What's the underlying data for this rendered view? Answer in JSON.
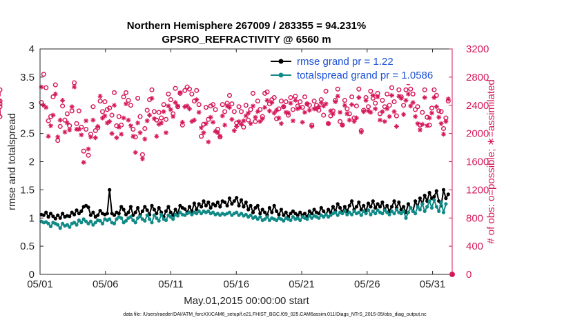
{
  "chart_data": {
    "type": "line",
    "title": "Northern Hemisphere 267009 / 283355 = 94.231%",
    "subtitle": "GPSRO_REFRACTIVITY @ 6560 m",
    "xlabel": "May.01,2015 00:00:00 start",
    "ylabel": "rmse and totalspread",
    "y2label": "# of obs: o=possible; ∗=assimilated",
    "footnote": "data file: /Users/raeder/DAI/ATM_forcXX/CAM6_setup/f.e21.FHIST_BGC.f09_025.CAM6assim.011/Diags_NTrS_2015-05/obs_diag_output.nc",
    "xlim": [
      0,
      31.5
    ],
    "ylim": [
      0,
      4
    ],
    "y2lim": [
      0,
      3200
    ],
    "x_ticks": [
      0,
      5,
      10,
      15,
      20,
      25,
      30
    ],
    "x_tick_labels": [
      "05/01",
      "05/06",
      "05/11",
      "05/16",
      "05/21",
      "05/26",
      "05/31"
    ],
    "y_ticks": [
      0,
      0.5,
      1,
      1.5,
      2,
      2.5,
      3,
      3.5,
      4
    ],
    "y_tick_labels": [
      "0",
      "0.5",
      "1",
      "1.5",
      "2",
      "2.5",
      "3",
      "3.5",
      "4"
    ],
    "y2_ticks": [
      0,
      400,
      800,
      1200,
      1600,
      2000,
      2400,
      2800,
      3200
    ],
    "y2_tick_labels": [
      "0",
      "400",
      "800",
      "1200",
      "1600",
      "2000",
      "2400",
      "2800",
      "3200"
    ],
    "series": [
      {
        "name": "rmse grand pr = 1.22",
        "axis": "left",
        "color": "#000000",
        "marker": "dot",
        "values": [
          1.06,
          1.05,
          1.1,
          1.02,
          1.08,
          1.03,
          0.99,
          1.05,
          1.0,
          1.08,
          1.02,
          1.04,
          1.03,
          1.1,
          1.06,
          1.14,
          1.08,
          1.12,
          1.2,
          1.22,
          1.19,
          1.05,
          1.1,
          1.02,
          1.05,
          1.13,
          1.08,
          1.06,
          1.08,
          1.5,
          1.08,
          1.05,
          1.1,
          1.08,
          1.2,
          1.15,
          1.06,
          1.1,
          1.2,
          1.05,
          1.1,
          1.18,
          1.05,
          1.12,
          1.2,
          1.14,
          1.06,
          1.22,
          1.15,
          1.08,
          1.18,
          1.1,
          1.02,
          1.12,
          1.2,
          1.1,
          1.05,
          1.15,
          1.08,
          1.22,
          1.18,
          1.16,
          1.1,
          1.2,
          1.12,
          1.26,
          1.15,
          1.25,
          1.2,
          1.3,
          1.22,
          1.28,
          1.18,
          1.25,
          1.22,
          1.28,
          1.2,
          1.3,
          1.28,
          1.22,
          1.35,
          1.25,
          1.3,
          1.36,
          1.22,
          1.32,
          1.2,
          1.28,
          1.15,
          1.22,
          1.1,
          1.18,
          1.22,
          1.08,
          1.15,
          1.1,
          1.05,
          1.18,
          1.1,
          1.22,
          1.12,
          1.06,
          1.15,
          1.05,
          1.1,
          1.02,
          1.08,
          1.12,
          1.08,
          1.05,
          1.1,
          1.05,
          1.08,
          1.02,
          1.12,
          1.08,
          1.15,
          1.1,
          1.08,
          1.18,
          1.12,
          1.06,
          1.15,
          1.1,
          1.2,
          1.12,
          1.25,
          1.18,
          1.1,
          1.2,
          1.12,
          1.22,
          1.3,
          1.15,
          1.2,
          1.28,
          1.15,
          1.22,
          1.12,
          1.26,
          1.2,
          1.3,
          1.18,
          1.25,
          1.2,
          1.28,
          1.15,
          1.22,
          1.12,
          1.2,
          1.3,
          1.18,
          1.28,
          1.15,
          1.2,
          1.1,
          1.25,
          1.18,
          1.12,
          1.3,
          1.2,
          1.35,
          1.25,
          1.4,
          1.3,
          1.45,
          1.35,
          1.38,
          1.48,
          1.3,
          1.22,
          1.5,
          1.35,
          1.42
        ]
      },
      {
        "name": "totalspread grand pr = 1.0586",
        "axis": "left",
        "color": "#108a86",
        "marker": "dot",
        "values": [
          0.94,
          0.92,
          0.93,
          0.9,
          0.85,
          0.92,
          0.9,
          0.88,
          0.82,
          0.9,
          0.86,
          0.88,
          0.84,
          0.9,
          0.92,
          0.88,
          0.96,
          0.92,
          0.98,
          0.94,
          0.9,
          0.94,
          0.88,
          0.92,
          0.96,
          0.95,
          0.9,
          0.98,
          0.96,
          0.98,
          0.92,
          0.9,
          0.98,
          1.02,
          1.0,
          0.92,
          0.95,
          1.0,
          1.02,
          0.96,
          0.92,
          1.0,
          1.03,
          0.98,
          0.95,
          1.05,
          0.98,
          0.92,
          1.05,
          1.0,
          0.95,
          1.06,
          0.98,
          0.96,
          1.05,
          1.02,
          0.98,
          1.06,
          1.04,
          1.1,
          1.06,
          1.05,
          1.08,
          1.1,
          1.06,
          1.1,
          1.08,
          1.12,
          1.08,
          1.12,
          1.1,
          1.12,
          1.08,
          1.1,
          1.06,
          1.08,
          1.05,
          1.08,
          1.06,
          1.08,
          1.1,
          1.05,
          1.08,
          1.1,
          1.05,
          1.08,
          1.04,
          1.06,
          1.02,
          1.05,
          1.0,
          1.02,
          0.98,
          1.02,
          0.96,
          0.98,
          1.02,
          0.96,
          1.0,
          0.98,
          0.96,
          1.0,
          0.98,
          0.95,
          1.0,
          0.98,
          0.96,
          1.02,
          0.98,
          1.0,
          0.96,
          1.02,
          1.0,
          0.98,
          1.04,
          1.0,
          1.04,
          1.02,
          1.0,
          1.05,
          1.02,
          1.06,
          1.02,
          1.05,
          1.08,
          1.1,
          1.05,
          1.1,
          1.08,
          1.12,
          1.06,
          1.1,
          1.06,
          1.12,
          1.08,
          1.1,
          1.05,
          1.12,
          1.08,
          1.14,
          1.06,
          1.12,
          1.08,
          1.14,
          1.1,
          1.08,
          1.14,
          1.1,
          1.06,
          1.12,
          1.08,
          1.15,
          1.1,
          1.08,
          1.12,
          1.0,
          1.1,
          1.18,
          1.12,
          1.08,
          1.2,
          1.15,
          1.25,
          1.12,
          1.2,
          1.3,
          1.18,
          1.32,
          1.2,
          1.12,
          1.28,
          1.1,
          1.25
        ]
      },
      {
        "name": "possible obs",
        "axis": "right",
        "color": "#d6195b",
        "marker": "circle",
        "values": [
          2440,
          2840,
          2650,
          2180,
          2240,
          2520,
          2690,
          1900,
          2100,
          2390,
          2190,
          2280,
          2110,
          2320,
          2720,
          2140,
          2320,
          2090,
          1750,
          2060,
          1690,
          1990,
          2380,
          2040,
          2080,
          2460,
          2310,
          2450,
          2340,
          2360,
          2260,
          2580,
          2110,
          2240,
          2120,
          2520,
          2580,
          2470,
          2400,
          2060,
          1950,
          2500,
          2240,
          1700,
          2070,
          2330,
          2480,
          2620,
          2310,
          2190,
          2300,
          2220,
          2410,
          2200,
          2560,
          2480,
          2280,
          2640,
          2380,
          2570,
          2120,
          2610,
          2660,
          2630,
          2560,
          2460,
          2610,
          2410,
          1960,
          2130,
          2370,
          2200,
          2390,
          2410,
          2340,
          2060,
          1950,
          2410,
          2310,
          2430,
          2540,
          2420,
          2310,
          2150,
          2380,
          2310,
          2090,
          2400,
          2190,
          2340,
          2570,
          2170,
          2460,
          2340,
          2240,
          2570,
          2590,
          2420,
          2480,
          2510,
          2210,
          2350,
          2460,
          2380,
          2450,
          2260,
          2510,
          2340,
          2530,
          2390,
          2450,
          2370,
          2520,
          2420,
          2400,
          2120,
          2460,
          2400,
          2330,
          2480,
          2260,
          2600,
          2140,
          2250,
          2320,
          2470,
          2630,
          2170,
          2120,
          2470,
          2350,
          2280,
          2520,
          2220,
          2390,
          2630,
          2040,
          2330,
          2510,
          2380,
          2600,
          2500,
          2430,
          2570,
          2280,
          2470,
          2380,
          2560,
          2400,
          2650,
          2450,
          2250,
          2620,
          2520,
          2400,
          2620,
          2720,
          2630,
          2560,
          2340,
          2380,
          2120,
          2300,
          2620,
          2230,
          2120,
          2360,
          2620,
          2540,
          2320,
          2310,
          2070,
          2220,
          2460,
          2240,
          2380,
          2460,
          2420,
          2460,
          2620
        ]
      },
      {
        "name": "assimilated obs",
        "axis": "right",
        "color": "#d6195b",
        "marker": "asterisk",
        "values": [
          2660,
          2400,
          2370,
          1960,
          2110,
          2260,
          2560,
          1950,
          2190,
          2470,
          2020,
          2150,
          2050,
          2380,
          2660,
          2060,
          2060,
          1980,
          1590,
          2180,
          1780,
          1950,
          2190,
          1940,
          2100,
          2530,
          2220,
          2250,
          2150,
          2170,
          2000,
          2400,
          1940,
          2090,
          1990,
          2220,
          2420,
          2190,
          2110,
          1960,
          1730,
          2150,
          2010,
          1640,
          1920,
          2180,
          2260,
          2500,
          2210,
          1960,
          2130,
          2150,
          2310,
          2010,
          2390,
          2340,
          2240,
          2440,
          2390,
          2580,
          2160,
          2380,
          2390,
          2350,
          2170,
          2190,
          2480,
          2300,
          2080,
          2010,
          2140,
          1880,
          2230,
          2160,
          2030,
          2010,
          1960,
          2250,
          2120,
          2390,
          2370,
          2200,
          2040,
          2100,
          2170,
          2130,
          2180,
          2250,
          2290,
          2140,
          2390,
          2230,
          2310,
          2170,
          2210,
          2370,
          2470,
          2320,
          2440,
          2290,
          2330,
          2220,
          2140,
          2380,
          2300,
          2290,
          2430,
          2180,
          2470,
          2350,
          2370,
          2160,
          2300,
          2420,
          2330,
          2100,
          2350,
          2350,
          2380,
          2440,
          2390,
          2420,
          2140,
          2320,
          2280,
          2450,
          2530,
          2300,
          2120,
          2400,
          2280,
          2190,
          2410,
          2170,
          2220,
          2510,
          2020,
          2310,
          2470,
          2320,
          2300,
          2540,
          2350,
          2520,
          2190,
          2310,
          2170,
          2350,
          2240,
          2540,
          2310,
          2100,
          2530,
          2500,
          2270,
          2470,
          2560,
          2390,
          2440,
          2240,
          2140,
          2050,
          2130,
          2510,
          2110,
          2220,
          2290,
          2510,
          2380,
          2230,
          2140,
          1990,
          2170,
          2490,
          2280,
          2290,
          2330,
          2460,
          2300,
          2560
        ]
      }
    ]
  },
  "legend": {
    "rmse_label": "rmse grand pr = 1.22",
    "spread_label": "totalspread grand pr = 1.0586"
  }
}
